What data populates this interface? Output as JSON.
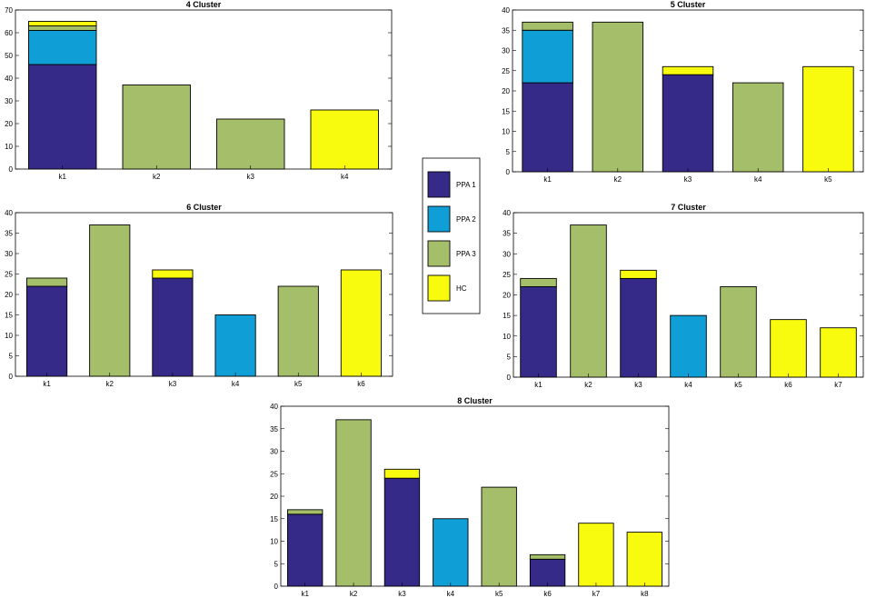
{
  "colors": {
    "PPA 1": "#352a87",
    "PPA 2": "#0f9fd6",
    "PPA 3": "#a5be6a",
    "HC": "#f9fb0e"
  },
  "legend": {
    "entries": [
      "PPA 1",
      "PPA 2",
      "PPA 3",
      "HC"
    ],
    "placement": "center"
  },
  "chart_data": [
    {
      "id": "c4",
      "type": "bar",
      "stacked": true,
      "title": "4 Cluster",
      "categories": [
        "k1",
        "k2",
        "k3",
        "k4"
      ],
      "ylim": [
        0,
        70
      ],
      "yticks": [
        0,
        10,
        20,
        30,
        40,
        50,
        60,
        70
      ],
      "series": [
        {
          "name": "PPA 1",
          "values": [
            46,
            0,
            0,
            0
          ]
        },
        {
          "name": "PPA 2",
          "values": [
            15,
            0,
            0,
            0
          ]
        },
        {
          "name": "PPA 3",
          "values": [
            2,
            37,
            22,
            0
          ]
        },
        {
          "name": "HC",
          "values": [
            2,
            0,
            0,
            26
          ]
        }
      ]
    },
    {
      "id": "c5",
      "type": "bar",
      "stacked": true,
      "title": "5 Cluster",
      "categories": [
        "k1",
        "k2",
        "k3",
        "k4",
        "k5"
      ],
      "ylim": [
        0,
        40
      ],
      "yticks": [
        0,
        5,
        10,
        15,
        20,
        25,
        30,
        35,
        40
      ],
      "series": [
        {
          "name": "PPA 1",
          "values": [
            22,
            0,
            24,
            0,
            0
          ]
        },
        {
          "name": "PPA 2",
          "values": [
            13,
            0,
            0,
            0,
            0
          ]
        },
        {
          "name": "PPA 3",
          "values": [
            2,
            37,
            0,
            22,
            0
          ]
        },
        {
          "name": "HC",
          "values": [
            0,
            0,
            2,
            0,
            26
          ]
        }
      ]
    },
    {
      "id": "c6",
      "type": "bar",
      "stacked": true,
      "title": "6 Cluster",
      "categories": [
        "k1",
        "k2",
        "k3",
        "k4",
        "k5",
        "k6"
      ],
      "ylim": [
        0,
        40
      ],
      "yticks": [
        0,
        5,
        10,
        15,
        20,
        25,
        30,
        35,
        40
      ],
      "series": [
        {
          "name": "PPA 1",
          "values": [
            22,
            0,
            24,
            0,
            0,
            0
          ]
        },
        {
          "name": "PPA 2",
          "values": [
            0,
            0,
            0,
            15,
            0,
            0
          ]
        },
        {
          "name": "PPA 3",
          "values": [
            2,
            37,
            0,
            0,
            22,
            0
          ]
        },
        {
          "name": "HC",
          "values": [
            0,
            0,
            2,
            0,
            0,
            26
          ]
        }
      ]
    },
    {
      "id": "c7",
      "type": "bar",
      "stacked": true,
      "title": "7 Cluster",
      "categories": [
        "k1",
        "k2",
        "k3",
        "k4",
        "k5",
        "k6",
        "k7"
      ],
      "ylim": [
        0,
        40
      ],
      "yticks": [
        0,
        5,
        10,
        15,
        20,
        25,
        30,
        35,
        40
      ],
      "series": [
        {
          "name": "PPA 1",
          "values": [
            22,
            0,
            24,
            0,
            0,
            0,
            0
          ]
        },
        {
          "name": "PPA 2",
          "values": [
            0,
            0,
            0,
            15,
            0,
            0,
            0
          ]
        },
        {
          "name": "PPA 3",
          "values": [
            2,
            37,
            0,
            0,
            22,
            0,
            0
          ]
        },
        {
          "name": "HC",
          "values": [
            0,
            0,
            2,
            0,
            0,
            14,
            12
          ]
        }
      ]
    },
    {
      "id": "c8",
      "type": "bar",
      "stacked": true,
      "title": "8 Cluster",
      "categories": [
        "k1",
        "k2",
        "k3",
        "k4",
        "k5",
        "k6",
        "k7",
        "k8"
      ],
      "ylim": [
        0,
        40
      ],
      "yticks": [
        0,
        5,
        10,
        15,
        20,
        25,
        30,
        35,
        40
      ],
      "series": [
        {
          "name": "PPA 1",
          "values": [
            16,
            0,
            24,
            0,
            0,
            6,
            0,
            0
          ]
        },
        {
          "name": "PPA 2",
          "values": [
            0,
            0,
            0,
            15,
            0,
            0,
            0,
            0
          ]
        },
        {
          "name": "PPA 3",
          "values": [
            1,
            37,
            0,
            0,
            22,
            1,
            0,
            0
          ]
        },
        {
          "name": "HC",
          "values": [
            0,
            0,
            2,
            0,
            0,
            0,
            14,
            12
          ]
        }
      ]
    }
  ]
}
